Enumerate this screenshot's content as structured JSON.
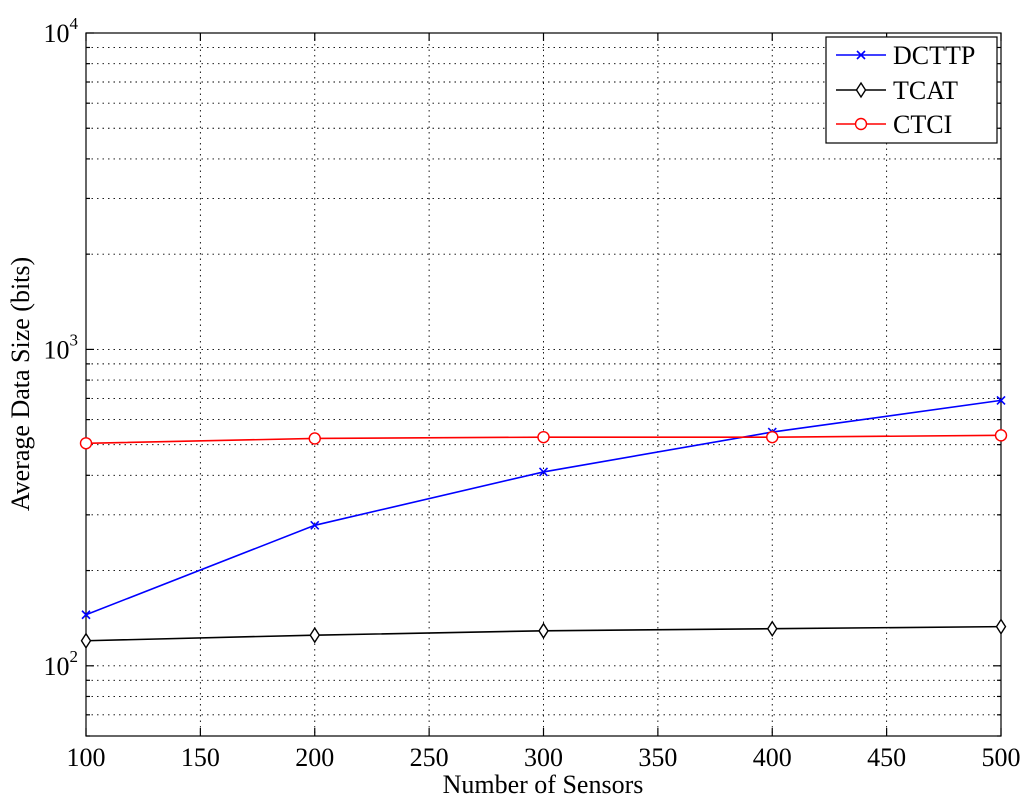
{
  "chart_data": {
    "type": "line",
    "xlabel": "Number of Sensors",
    "ylabel": "Average Data Size (bits)",
    "xlim": [
      100,
      500
    ],
    "ylim": [
      60,
      10000
    ],
    "yscale": "log",
    "grid": true,
    "legend_position": "top-right",
    "x_ticks": [
      100,
      150,
      200,
      250,
      300,
      350,
      400,
      450,
      500
    ],
    "x_tick_labels": [
      "100",
      "150",
      "200",
      "250",
      "300",
      "350",
      "400",
      "450",
      "500"
    ],
    "y_ticks": [
      {
        "value": 100,
        "base": "10",
        "exp": "2"
      },
      {
        "value": 1000,
        "base": "10",
        "exp": "3"
      },
      {
        "value": 10000,
        "base": "10",
        "exp": "4"
      }
    ],
    "x": [
      100,
      200,
      300,
      400,
      500
    ],
    "series": [
      {
        "name": "DCTTP",
        "color": "#0000ff",
        "marker": "x",
        "values": [
          145,
          278,
          410,
          548,
          690
        ]
      },
      {
        "name": "TCAT",
        "color": "#000000",
        "marker": "diamond",
        "values": [
          120,
          125,
          129,
          131,
          133
        ]
      },
      {
        "name": "CTCI",
        "color": "#ff0000",
        "marker": "circle",
        "values": [
          505,
          523,
          528,
          528,
          535
        ]
      }
    ]
  }
}
